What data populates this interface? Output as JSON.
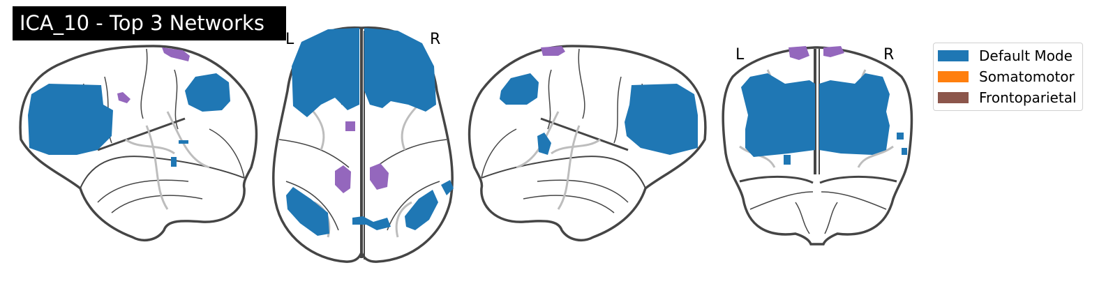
{
  "title": "ICA_10 - Top 3 Networks",
  "views": {
    "axial": {
      "left_label": "L",
      "right_label": "R"
    },
    "coronal": {
      "left_label": "L",
      "right_label": "R"
    }
  },
  "legend": [
    {
      "label": "Default Mode",
      "color": "#1f77b4"
    },
    {
      "label": "Somatomotor",
      "color": "#ff7f0e"
    },
    {
      "label": "Frontoparietal",
      "color": "#8c564b"
    }
  ],
  "colors": {
    "default_mode": "#1f77b4",
    "overlay_purple": "#9467bd",
    "outline": "#454545",
    "sulci": "#bdbdbd"
  }
}
